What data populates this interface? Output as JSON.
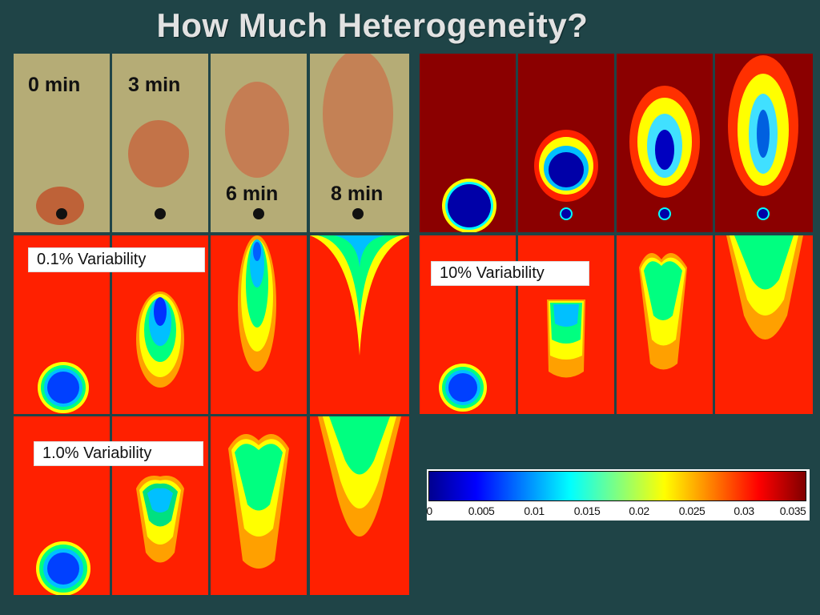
{
  "title": "How Much Heterogeneity?",
  "time_labels": [
    "0 min",
    "3 min",
    "6 min",
    "8 min"
  ],
  "variability_labels": [
    "0.1% Variability",
    "1.0% Variability",
    "10% Variability"
  ],
  "colorbar": {
    "ticks": [
      "0",
      "0.005",
      "0.01",
      "0.015",
      "0.02",
      "0.025",
      "0.03",
      "0.035"
    ],
    "colors": [
      "#00008f",
      "#0000ff",
      "#0080ff",
      "#00ffff",
      "#80ff80",
      "#ffff00",
      "#ff8000",
      "#ff0000",
      "#800000"
    ]
  }
}
